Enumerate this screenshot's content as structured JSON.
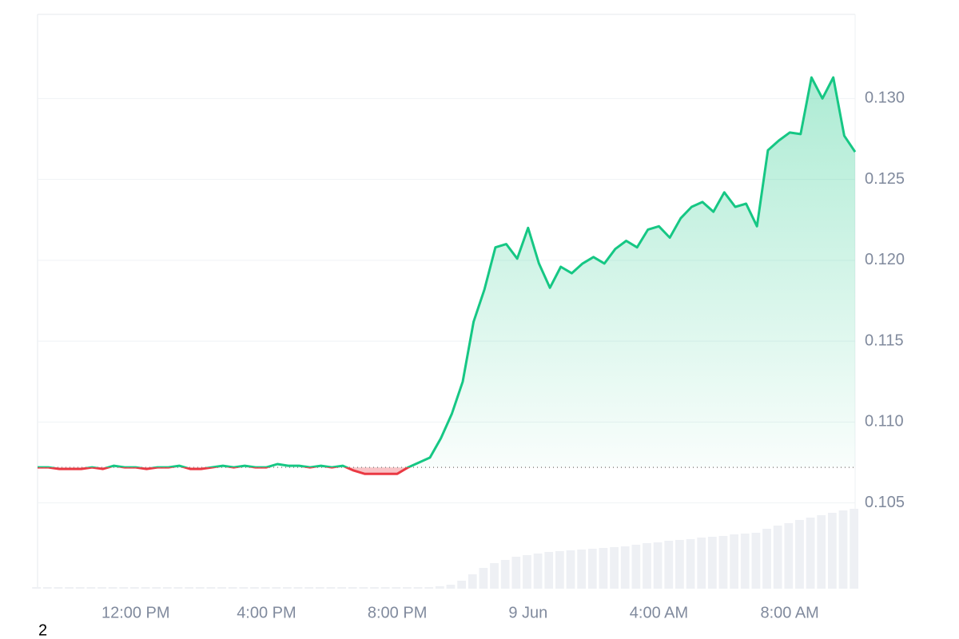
{
  "chart_data": {
    "type": "line",
    "x": [
      "8 Jun 09:00",
      "8 Jun 09:20",
      "8 Jun 09:40",
      "8 Jun 10:00",
      "8 Jun 10:20",
      "8 Jun 10:40",
      "8 Jun 11:00",
      "8 Jun 11:20",
      "8 Jun 11:40",
      "8 Jun 12:00",
      "8 Jun 12:20",
      "8 Jun 12:40",
      "8 Jun 13:00",
      "8 Jun 13:20",
      "8 Jun 13:40",
      "8 Jun 14:00",
      "8 Jun 14:20",
      "8 Jun 14:40",
      "8 Jun 15:00",
      "8 Jun 15:20",
      "8 Jun 15:40",
      "8 Jun 16:00",
      "8 Jun 16:20",
      "8 Jun 16:40",
      "8 Jun 17:00",
      "8 Jun 17:20",
      "8 Jun 17:40",
      "8 Jun 18:00",
      "8 Jun 18:20",
      "8 Jun 18:40",
      "8 Jun 19:00",
      "8 Jun 19:20",
      "8 Jun 19:40",
      "8 Jun 20:00",
      "8 Jun 20:20",
      "8 Jun 20:40",
      "8 Jun 21:00",
      "8 Jun 21:20",
      "8 Jun 21:40",
      "8 Jun 22:00",
      "8 Jun 22:20",
      "8 Jun 22:40",
      "8 Jun 23:00",
      "8 Jun 23:20",
      "8 Jun 23:40",
      "9 Jun 00:00",
      "9 Jun 00:20",
      "9 Jun 00:40",
      "9 Jun 01:00",
      "9 Jun 01:20",
      "9 Jun 01:40",
      "9 Jun 02:00",
      "9 Jun 02:20",
      "9 Jun 02:40",
      "9 Jun 03:00",
      "9 Jun 03:20",
      "9 Jun 03:40",
      "9 Jun 04:00",
      "9 Jun 04:20",
      "9 Jun 04:40",
      "9 Jun 05:00",
      "9 Jun 05:20",
      "9 Jun 05:40",
      "9 Jun 06:00",
      "9 Jun 06:20",
      "9 Jun 06:40",
      "9 Jun 07:00",
      "9 Jun 07:20",
      "9 Jun 07:40",
      "9 Jun 08:00",
      "9 Jun 08:20",
      "9 Jun 08:40",
      "9 Jun 09:00",
      "9 Jun 09:20",
      "9 Jun 09:40",
      "9 Jun 10:00"
    ],
    "series": [
      {
        "name": "Price",
        "up_color": "#16c784",
        "down_color": "#ea3943",
        "values": [
          0.1072,
          0.1072,
          0.1071,
          0.1071,
          0.1071,
          0.1072,
          0.1071,
          0.1073,
          0.1072,
          0.1072,
          0.1071,
          0.1072,
          0.1072,
          0.1073,
          0.1071,
          0.1071,
          0.1072,
          0.1073,
          0.1072,
          0.1073,
          0.1072,
          0.1072,
          0.1074,
          0.1073,
          0.1073,
          0.1072,
          0.1073,
          0.1072,
          0.1073,
          0.107,
          0.1068,
          0.1068,
          0.1068,
          0.1068,
          0.1072,
          0.1075,
          0.1078,
          0.109,
          0.1105,
          0.1125,
          0.1162,
          0.1182,
          0.1208,
          0.121,
          0.1201,
          0.122,
          0.1198,
          0.1183,
          0.1196,
          0.1192,
          0.1198,
          0.1202,
          0.1198,
          0.1207,
          0.1212,
          0.1208,
          0.1219,
          0.1221,
          0.1214,
          0.1226,
          0.1233,
          0.1236,
          0.123,
          0.1242,
          0.1233,
          0.1235,
          0.1221,
          0.1268,
          0.1274,
          0.1279,
          0.1278,
          0.1313,
          0.13,
          0.1313,
          0.1277,
          0.1267
        ]
      },
      {
        "name": "Volume",
        "color": "#eef0f4",
        "values": [
          2,
          2,
          2,
          2,
          2,
          2,
          2,
          2,
          2,
          2,
          2,
          2,
          2,
          2,
          2,
          2,
          2,
          2,
          2,
          2,
          2,
          2,
          2,
          2,
          2,
          2,
          2,
          2,
          2,
          2,
          2,
          2,
          2,
          2,
          2,
          2,
          2,
          3,
          5,
          10,
          18,
          26,
          32,
          36,
          40,
          42,
          44,
          46,
          47,
          48,
          49,
          50,
          51,
          52,
          53,
          55,
          57,
          58,
          60,
          61,
          62,
          64,
          65,
          66,
          68,
          69,
          70,
          75,
          79,
          82,
          86,
          89,
          92,
          95,
          98,
          100
        ]
      }
    ],
    "baseline": 0.1072,
    "ylim": [
      0.0997,
      0.1352
    ],
    "yticks": [
      0.105,
      {
        "value": 0.11,
        "label": "0.110"
      },
      0.115,
      {
        "value": 0.12,
        "label": "0.120"
      },
      0.125,
      {
        "value": 0.13,
        "label": "0.130"
      }
    ],
    "xticks": [
      {
        "value": "8 Jun 12:00",
        "label": "12:00 PM"
      },
      {
        "value": "8 Jun 16:00",
        "label": "4:00 PM"
      },
      {
        "value": "8 Jun 20:00",
        "label": "8:00 PM"
      },
      {
        "value": "9 Jun 00:00",
        "label": "9 Jun"
      },
      {
        "value": "9 Jun 04:00",
        "label": "4:00 AM"
      },
      {
        "value": "9 Jun 08:00",
        "label": "8:00 AM"
      }
    ],
    "grid": true,
    "footnote": "2"
  }
}
